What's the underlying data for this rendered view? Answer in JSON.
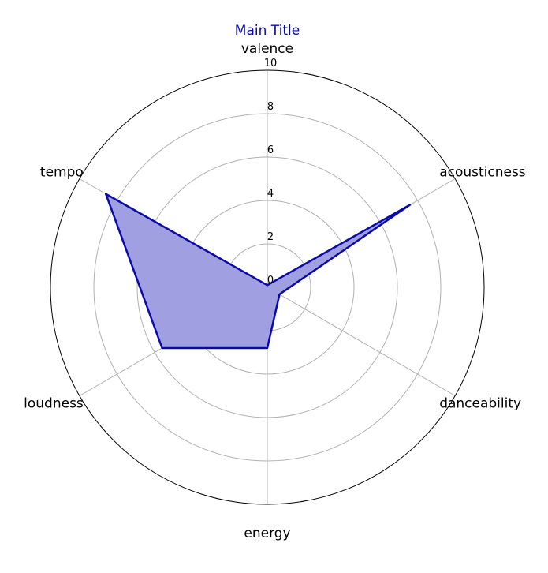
{
  "chart_data": {
    "type": "radar",
    "title": "Main Title",
    "title_color": "#0a0aa0",
    "categories": [
      "valence",
      "acousticness",
      "danceability",
      "energy",
      "loudness",
      "tempo"
    ],
    "series": [
      {
        "values": [
          0.1,
          7.6,
          0.65,
          2.8,
          5.6,
          8.6
        ]
      }
    ],
    "rlim": [
      0,
      10
    ],
    "r_ticks": [
      "0",
      "2",
      "4",
      "6",
      "8",
      "10"
    ],
    "grid": true,
    "line_color": "#0a0aa8",
    "fill_color": "#a09fe2",
    "grid_color": "#b0b0b0",
    "outline_color": "#000000"
  }
}
